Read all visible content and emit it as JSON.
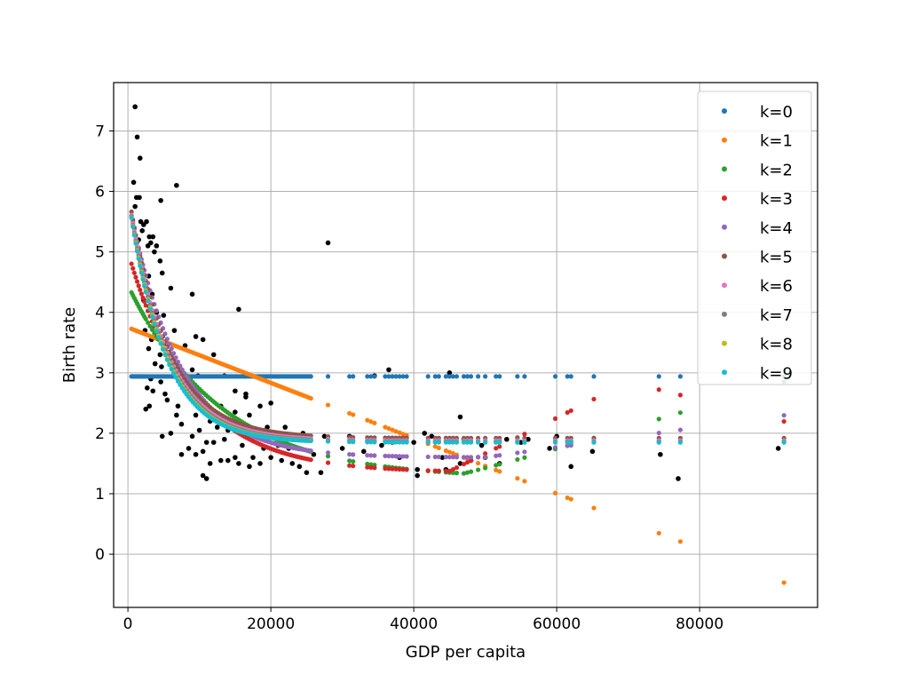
{
  "chart_data": {
    "type": "scatter",
    "title": "",
    "xlabel": "GDP per capita",
    "ylabel": "Birth rate",
    "xlim": [
      -2000,
      96500
    ],
    "ylim": [
      -0.88,
      7.8
    ],
    "xticks": [
      0,
      20000,
      40000,
      60000,
      80000
    ],
    "yticks": [
      0,
      1,
      2,
      3,
      4,
      5,
      6,
      7
    ],
    "grid": true,
    "legend_position": "top-right",
    "observed_points": {
      "color": "#000000",
      "points": [
        [
          1000,
          7.4
        ],
        [
          1300,
          6.9
        ],
        [
          1700,
          6.55
        ],
        [
          800,
          6.15
        ],
        [
          6800,
          6.1
        ],
        [
          1200,
          5.9
        ],
        [
          1600,
          5.9
        ],
        [
          1000,
          5.75
        ],
        [
          4600,
          5.85
        ],
        [
          1800,
          5.5
        ],
        [
          2200,
          5.45
        ],
        [
          2600,
          5.5
        ],
        [
          2000,
          5.35
        ],
        [
          3000,
          5.25
        ],
        [
          3500,
          5.25
        ],
        [
          1500,
          5.2
        ],
        [
          2800,
          5.1
        ],
        [
          3200,
          5.15
        ],
        [
          4000,
          5.1
        ],
        [
          3700,
          5.0
        ],
        [
          4500,
          4.85
        ],
        [
          2100,
          4.7
        ],
        [
          2900,
          4.6
        ],
        [
          4800,
          4.65
        ],
        [
          2600,
          4.4
        ],
        [
          6000,
          4.4
        ],
        [
          3400,
          4.3
        ],
        [
          9000,
          4.3
        ],
        [
          2200,
          4.2
        ],
        [
          3000,
          4.1
        ],
        [
          4000,
          4.0
        ],
        [
          5000,
          3.95
        ],
        [
          3600,
          3.85
        ],
        [
          6500,
          3.7
        ],
        [
          2400,
          3.7
        ],
        [
          3300,
          3.55
        ],
        [
          9500,
          3.6
        ],
        [
          10500,
          3.55
        ],
        [
          5500,
          3.45
        ],
        [
          8000,
          3.45
        ],
        [
          2900,
          3.4
        ],
        [
          4500,
          3.3
        ],
        [
          12000,
          3.3
        ],
        [
          3800,
          3.15
        ],
        [
          4700,
          3.1
        ],
        [
          6500,
          3.05
        ],
        [
          9000,
          3.05
        ],
        [
          3200,
          2.9
        ],
        [
          4600,
          2.85
        ],
        [
          2700,
          2.75
        ],
        [
          3500,
          2.7
        ],
        [
          5200,
          2.65
        ],
        [
          8500,
          2.7
        ],
        [
          15000,
          2.7
        ],
        [
          16500,
          2.65
        ],
        [
          3000,
          2.45
        ],
        [
          5500,
          2.55
        ],
        [
          7000,
          2.45
        ],
        [
          13000,
          2.45
        ],
        [
          15000,
          2.35
        ],
        [
          17000,
          2.3
        ],
        [
          2500,
          2.4
        ],
        [
          6800,
          2.3
        ],
        [
          9500,
          2.3
        ],
        [
          11500,
          2.2
        ],
        [
          18500,
          2.45
        ],
        [
          20000,
          2.5
        ],
        [
          7500,
          2.15
        ],
        [
          10000,
          2.05
        ],
        [
          12500,
          2.1
        ],
        [
          14000,
          2.05
        ],
        [
          6000,
          2.0
        ],
        [
          9000,
          1.95
        ],
        [
          11000,
          1.85
        ],
        [
          13500,
          1.9
        ],
        [
          4800,
          1.95
        ],
        [
          8500,
          1.75
        ],
        [
          10500,
          1.7
        ],
        [
          12000,
          1.85
        ],
        [
          16000,
          1.8
        ],
        [
          7500,
          1.65
        ],
        [
          9500,
          1.65
        ],
        [
          14000,
          1.55
        ],
        [
          15500,
          1.5
        ],
        [
          11500,
          1.5
        ],
        [
          17500,
          1.6
        ],
        [
          10500,
          1.3
        ],
        [
          11000,
          1.25
        ],
        [
          13000,
          1.55
        ],
        [
          15000,
          1.6
        ],
        [
          21500,
          1.55
        ],
        [
          24000,
          1.45
        ],
        [
          20000,
          1.6
        ],
        [
          23000,
          1.5
        ],
        [
          25000,
          1.35
        ],
        [
          27000,
          1.35
        ],
        [
          17000,
          1.45
        ],
        [
          18500,
          1.5
        ],
        [
          19000,
          1.75
        ],
        [
          21000,
          1.8
        ],
        [
          22500,
          1.75
        ],
        [
          26000,
          1.65
        ],
        [
          30000,
          1.75
        ],
        [
          33000,
          1.7
        ],
        [
          35500,
          1.8
        ],
        [
          38000,
          1.6
        ],
        [
          40500,
          1.4
        ],
        [
          44000,
          1.6
        ],
        [
          46500,
          1.5
        ],
        [
          48000,
          1.55
        ],
        [
          50000,
          1.6
        ],
        [
          52000,
          1.5
        ],
        [
          55000,
          1.85
        ],
        [
          59000,
          1.75
        ],
        [
          62000,
          1.45
        ],
        [
          65000,
          1.7
        ],
        [
          74500,
          1.65
        ],
        [
          77000,
          1.25
        ],
        [
          91000,
          1.75
        ],
        [
          40500,
          1.3
        ],
        [
          44500,
          1.4
        ],
        [
          28000,
          5.15
        ],
        [
          15500,
          4.05
        ],
        [
          36500,
          3.05
        ],
        [
          45000,
          3.0
        ],
        [
          46500,
          2.27
        ],
        [
          13500,
          2.95
        ],
        [
          16500,
          2.6
        ],
        [
          9800,
          2.95
        ],
        [
          19500,
          2.1
        ],
        [
          22000,
          2.1
        ],
        [
          24500,
          2.0
        ],
        [
          27500,
          1.95
        ],
        [
          31000,
          1.95
        ],
        [
          34000,
          1.9
        ],
        [
          37000,
          1.85
        ],
        [
          40000,
          1.85
        ],
        [
          42500,
          1.95
        ],
        [
          47000,
          1.9
        ],
        [
          49500,
          1.8
        ],
        [
          53000,
          1.9
        ],
        [
          56000,
          1.9
        ],
        [
          60000,
          1.95
        ],
        [
          41500,
          2.0
        ],
        [
          34500,
          2.95
        ]
      ]
    },
    "series": [
      {
        "name": "k=0",
        "color": "#1f77b4"
      },
      {
        "name": "k=1",
        "color": "#ff7f0e"
      },
      {
        "name": "k=2",
        "color": "#2ca02c"
      },
      {
        "name": "k=3",
        "color": "#d62728"
      },
      {
        "name": "k=4",
        "color": "#9467bd"
      },
      {
        "name": "k=5",
        "color": "#8c564b"
      },
      {
        "name": "k=6",
        "color": "#e377c2"
      },
      {
        "name": "k=7",
        "color": "#7f7f7f"
      },
      {
        "name": "k=8",
        "color": "#bcbd22"
      },
      {
        "name": "k=9",
        "color": "#17becf"
      }
    ],
    "fitted_x": [
      500,
      700,
      900,
      1100,
      1300,
      1500,
      1700,
      1900,
      2100,
      2300,
      2500,
      2800,
      3100,
      3400,
      3700,
      4000,
      4300,
      4600,
      4900,
      5200,
      5500,
      5800,
      6100,
      6400,
      6700,
      7000,
      7300,
      7600,
      7900,
      8200,
      8500,
      8800,
      9100,
      9400,
      9700,
      10000,
      10300,
      10600,
      10900,
      11200,
      11500,
      11800,
      12100,
      12400,
      12700,
      13000,
      13300,
      13600,
      13900,
      14200,
      14500,
      14800,
      15100,
      15400,
      15700,
      16000,
      16300,
      16600,
      16900,
      17200,
      17500,
      17800,
      18100,
      18400,
      18700,
      19000,
      19300,
      19600,
      19900,
      20200,
      20500,
      20800,
      21100,
      21400,
      21700,
      22000,
      22300,
      22600,
      22900,
      23200,
      23500,
      23800,
      24100,
      24400,
      24700,
      25000,
      25300,
      25600,
      28000,
      31000,
      31500,
      33500,
      34000,
      34500,
      36000,
      36500,
      37000,
      37500,
      38000,
      38500,
      39000,
      42000,
      43000,
      43500,
      44500,
      45000,
      45500,
      46000,
      47000,
      47500,
      48000,
      49000,
      50000,
      51500,
      52000,
      54500,
      55500,
      59800,
      61500,
      62000,
      65200,
      74300,
      77300,
      91800
    ]
  },
  "legend": {
    "items": [
      "k=0",
      "k=1",
      "k=2",
      "k=3",
      "k=4",
      "k=5",
      "k=6",
      "k=7",
      "k=8",
      "k=9"
    ]
  }
}
